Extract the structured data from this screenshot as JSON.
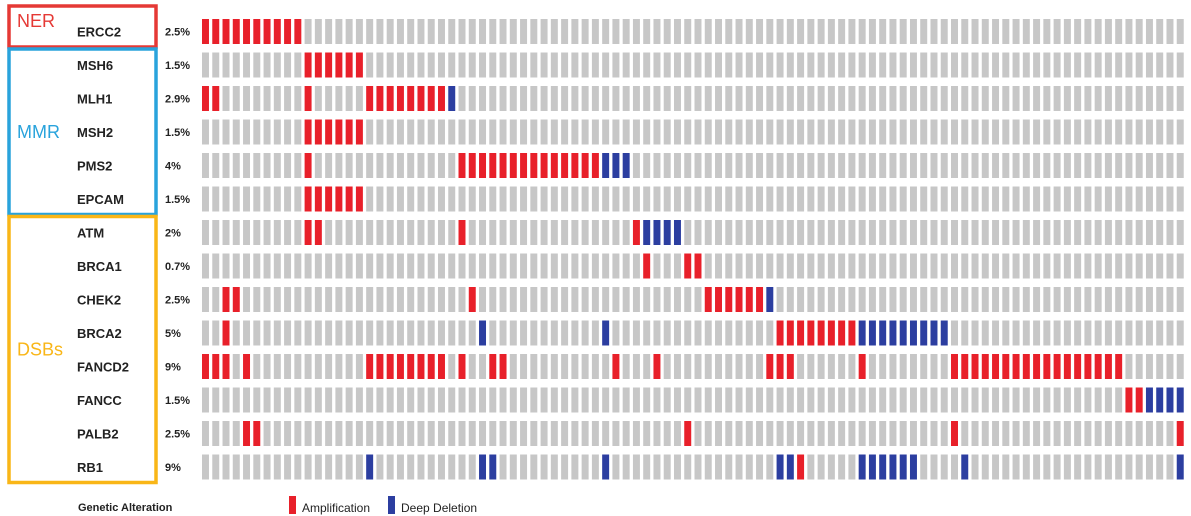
{
  "chart_data": {
    "type": "heatmap",
    "n_samples": 96,
    "groups": [
      {
        "label": "NER",
        "color": "#e53935",
        "genes": [
          "ERCC2"
        ]
      },
      {
        "label": "MMR",
        "color": "#29a3dc",
        "genes": [
          "MSH6",
          "MLH1",
          "MSH2",
          "PMS2",
          "EPCAM"
        ]
      },
      {
        "label": "DSBs",
        "color": "#f9b617",
        "genes": [
          "ATM",
          "BRCA1",
          "CHEK2",
          "BRCA2",
          "FANCD2",
          "FANCC",
          "PALB2",
          "RB1"
        ]
      }
    ],
    "rows": [
      {
        "gene": "ERCC2",
        "percent": "2.5%",
        "amp": [
          [
            0,
            9
          ]
        ],
        "del": []
      },
      {
        "gene": "MSH6",
        "percent": "1.5%",
        "amp": [
          [
            10,
            15
          ]
        ],
        "del": []
      },
      {
        "gene": "MLH1",
        "percent": "2.9%",
        "amp": [
          [
            0,
            1
          ],
          [
            10,
            10
          ],
          [
            16,
            23
          ]
        ],
        "del": [
          [
            24,
            24
          ]
        ]
      },
      {
        "gene": "MSH2",
        "percent": "1.5%",
        "amp": [
          [
            10,
            15
          ]
        ],
        "del": []
      },
      {
        "gene": "PMS2",
        "percent": "4%",
        "amp": [
          [
            10,
            10
          ],
          [
            25,
            38
          ]
        ],
        "del": [
          [
            39,
            41
          ]
        ]
      },
      {
        "gene": "EPCAM",
        "percent": "1.5%",
        "amp": [
          [
            10,
            15
          ]
        ],
        "del": []
      },
      {
        "gene": "ATM",
        "percent": "2%",
        "amp": [
          [
            10,
            11
          ],
          [
            25,
            25
          ],
          [
            42,
            42
          ]
        ],
        "del": [
          [
            43,
            46
          ]
        ]
      },
      {
        "gene": "BRCA1",
        "percent": "0.7%",
        "amp": [
          [
            43,
            43
          ],
          [
            47,
            48
          ]
        ],
        "del": []
      },
      {
        "gene": "CHEK2",
        "percent": "2.5%",
        "amp": [
          [
            2,
            3
          ],
          [
            26,
            26
          ],
          [
            49,
            54
          ]
        ],
        "del": [
          [
            55,
            55
          ]
        ]
      },
      {
        "gene": "BRCA2",
        "percent": "5%",
        "amp": [
          [
            2,
            2
          ],
          [
            56,
            63
          ]
        ],
        "del": [
          [
            27,
            27
          ],
          [
            39,
            39
          ],
          [
            64,
            72
          ]
        ]
      },
      {
        "gene": "FANCD2",
        "percent": "9%",
        "amp": [
          [
            0,
            2
          ],
          [
            4,
            4
          ],
          [
            16,
            23
          ],
          [
            25,
            25
          ],
          [
            28,
            29
          ],
          [
            40,
            40
          ],
          [
            44,
            44
          ],
          [
            55,
            57
          ],
          [
            64,
            64
          ],
          [
            73,
            89
          ]
        ],
        "del": []
      },
      {
        "gene": "FANCC",
        "percent": "1.5%",
        "amp": [
          [
            90,
            91
          ]
        ],
        "del": [
          [
            92,
            95
          ]
        ]
      },
      {
        "gene": "PALB2",
        "percent": "2.5%",
        "amp": [
          [
            4,
            5
          ],
          [
            47,
            47
          ],
          [
            73,
            73
          ],
          [
            95,
            95
          ]
        ],
        "del": []
      },
      {
        "gene": "RB1",
        "percent": "9%",
        "amp": [
          [
            58,
            58
          ]
        ],
        "del": [
          [
            16,
            16
          ],
          [
            27,
            28
          ],
          [
            39,
            39
          ],
          [
            56,
            57
          ],
          [
            64,
            69
          ],
          [
            74,
            74
          ],
          [
            95,
            95
          ]
        ]
      }
    ],
    "legend": {
      "title": "Genetic Alteration",
      "items": [
        {
          "label": "Amplification",
          "color": "#e8202a"
        },
        {
          "label": "Deep Deletion",
          "color": "#2c3ea0"
        }
      ]
    },
    "colors": {
      "no_alteration": "#c7c7c7",
      "amplification": "#e8202a",
      "deep_deletion": "#2c3ea0"
    }
  }
}
